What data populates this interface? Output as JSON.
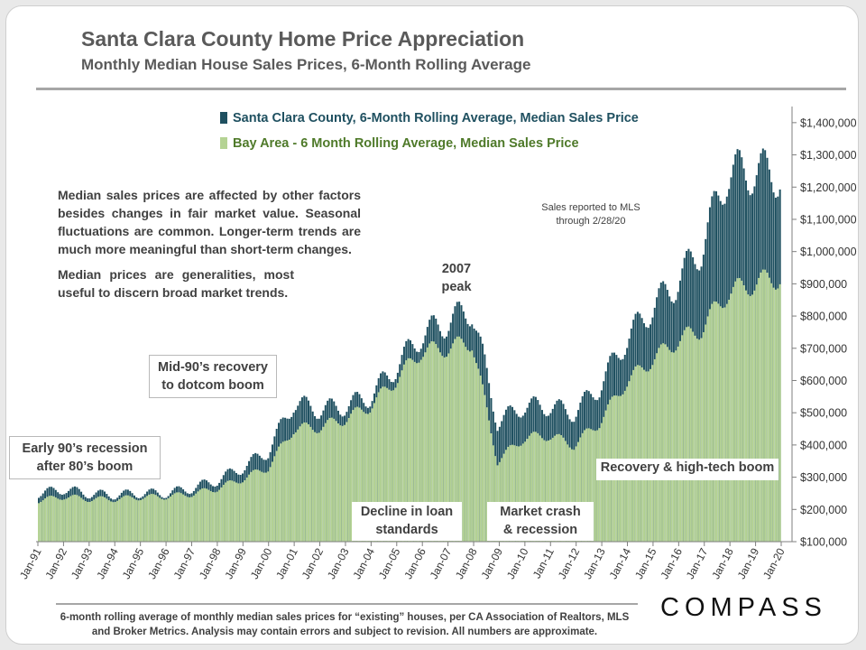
{
  "header": {
    "title": "Santa Clara County Home Price Appreciation",
    "subtitle": "Monthly Median House Sales Prices, 6-Month Rolling Average"
  },
  "chart_data": {
    "type": "bar",
    "title": "Santa Clara County Home Price Appreciation",
    "subtitle": "Monthly Median House Sales Prices, 6-Month Rolling Average",
    "ylim": [
      100000,
      1450000
    ],
    "y_ticks": [
      100000,
      200000,
      300000,
      400000,
      500000,
      600000,
      700000,
      800000,
      900000,
      1000000,
      1100000,
      1200000,
      1300000,
      1400000
    ],
    "y_tick_labels": [
      "$100,000",
      "$200,000",
      "$300,000",
      "$400,000",
      "$500,000",
      "$600,000",
      "$700,000",
      "$800,000",
      "$900,000",
      "$1,000,000",
      "$1,100,000",
      "$1,200,000",
      "$1,300,000",
      "$1,400,000"
    ],
    "x_tick_labels": [
      "Jan-91",
      "Jan-92",
      "Jan-93",
      "Jan-94",
      "Jan-95",
      "Jan-96",
      "Jan-97",
      "Jan-98",
      "Jan-99",
      "Jan-00",
      "Jan-01",
      "Jan-02",
      "Jan-03",
      "Jan-04",
      "Jan-05",
      "Jan-06",
      "Jan-07",
      "Jan-08",
      "Jan-09",
      "Jan-10",
      "Jan-11",
      "Jan-12",
      "Jan-13",
      "Jan-14",
      "Jan-15",
      "Jan-16",
      "Jan-17",
      "Jan-18",
      "Jan-19",
      "Jan-20"
    ],
    "legend_position": "top-center",
    "series_anchor_years": [
      1991,
      1992,
      1993,
      1994,
      1995,
      1996,
      1997,
      1998,
      1999,
      2000,
      2001,
      2002,
      2003,
      2004,
      2005,
      2006,
      2007,
      2008,
      2009,
      2010,
      2011,
      2012,
      2013,
      2014,
      2015,
      2016,
      2017,
      2018,
      2019,
      2020
    ],
    "series": [
      {
        "name": "Santa Clara County, 6-Month Rolling Average, Median Sales Price",
        "color": "#1f5060",
        "anchor_values": [
          250000,
          262000,
          248000,
          245000,
          250000,
          250000,
          265000,
          290000,
          330000,
          380000,
          530000,
          510000,
          520000,
          550000,
          640000,
          740000,
          780000,
          820000,
          470000,
          520000,
          520000,
          500000,
          580000,
          720000,
          820000,
          900000,
          1010000,
          1240000,
          1250000,
          1240000
        ]
      },
      {
        "name": "Bay Area - 6 Month Rolling Average, Median Sales Price",
        "color": "#b5d394",
        "anchor_values": [
          228000,
          240000,
          232000,
          232000,
          238000,
          240000,
          248000,
          265000,
          295000,
          330000,
          450000,
          455000,
          480000,
          520000,
          600000,
          690000,
          700000,
          720000,
          350000,
          420000,
          430000,
          400000,
          470000,
          590000,
          660000,
          720000,
          760000,
          870000,
          900000,
          920000
        ]
      }
    ],
    "annotations": [
      "Early 90’s recession\nafter 80’s boom",
      "Mid-90’s recovery\nto dotcom boom",
      "2007\npeak",
      "Decline in loan\nstandards",
      "Market crash\n& recession",
      "Recovery & high-tech boom"
    ],
    "notes": [
      "Median sales prices are affected by other factors besides changes in fair market value. Seasonal fluctuations are common. Longer-term trends are much more meaningful than short-term changes.",
      "Median prices are generalities, most useful to discern broad market trends."
    ],
    "source_note": "Sales reported to MLS\nthrough 2/28/20"
  },
  "footer": {
    "footnote": "6-month rolling average of monthly median sales prices for “existing” houses, per CA Association of Realtors, MLS and Broker Metrics.  Analysis may contain errors and subject to revision. All numbers are approximate.",
    "logo": "COMPASS"
  }
}
